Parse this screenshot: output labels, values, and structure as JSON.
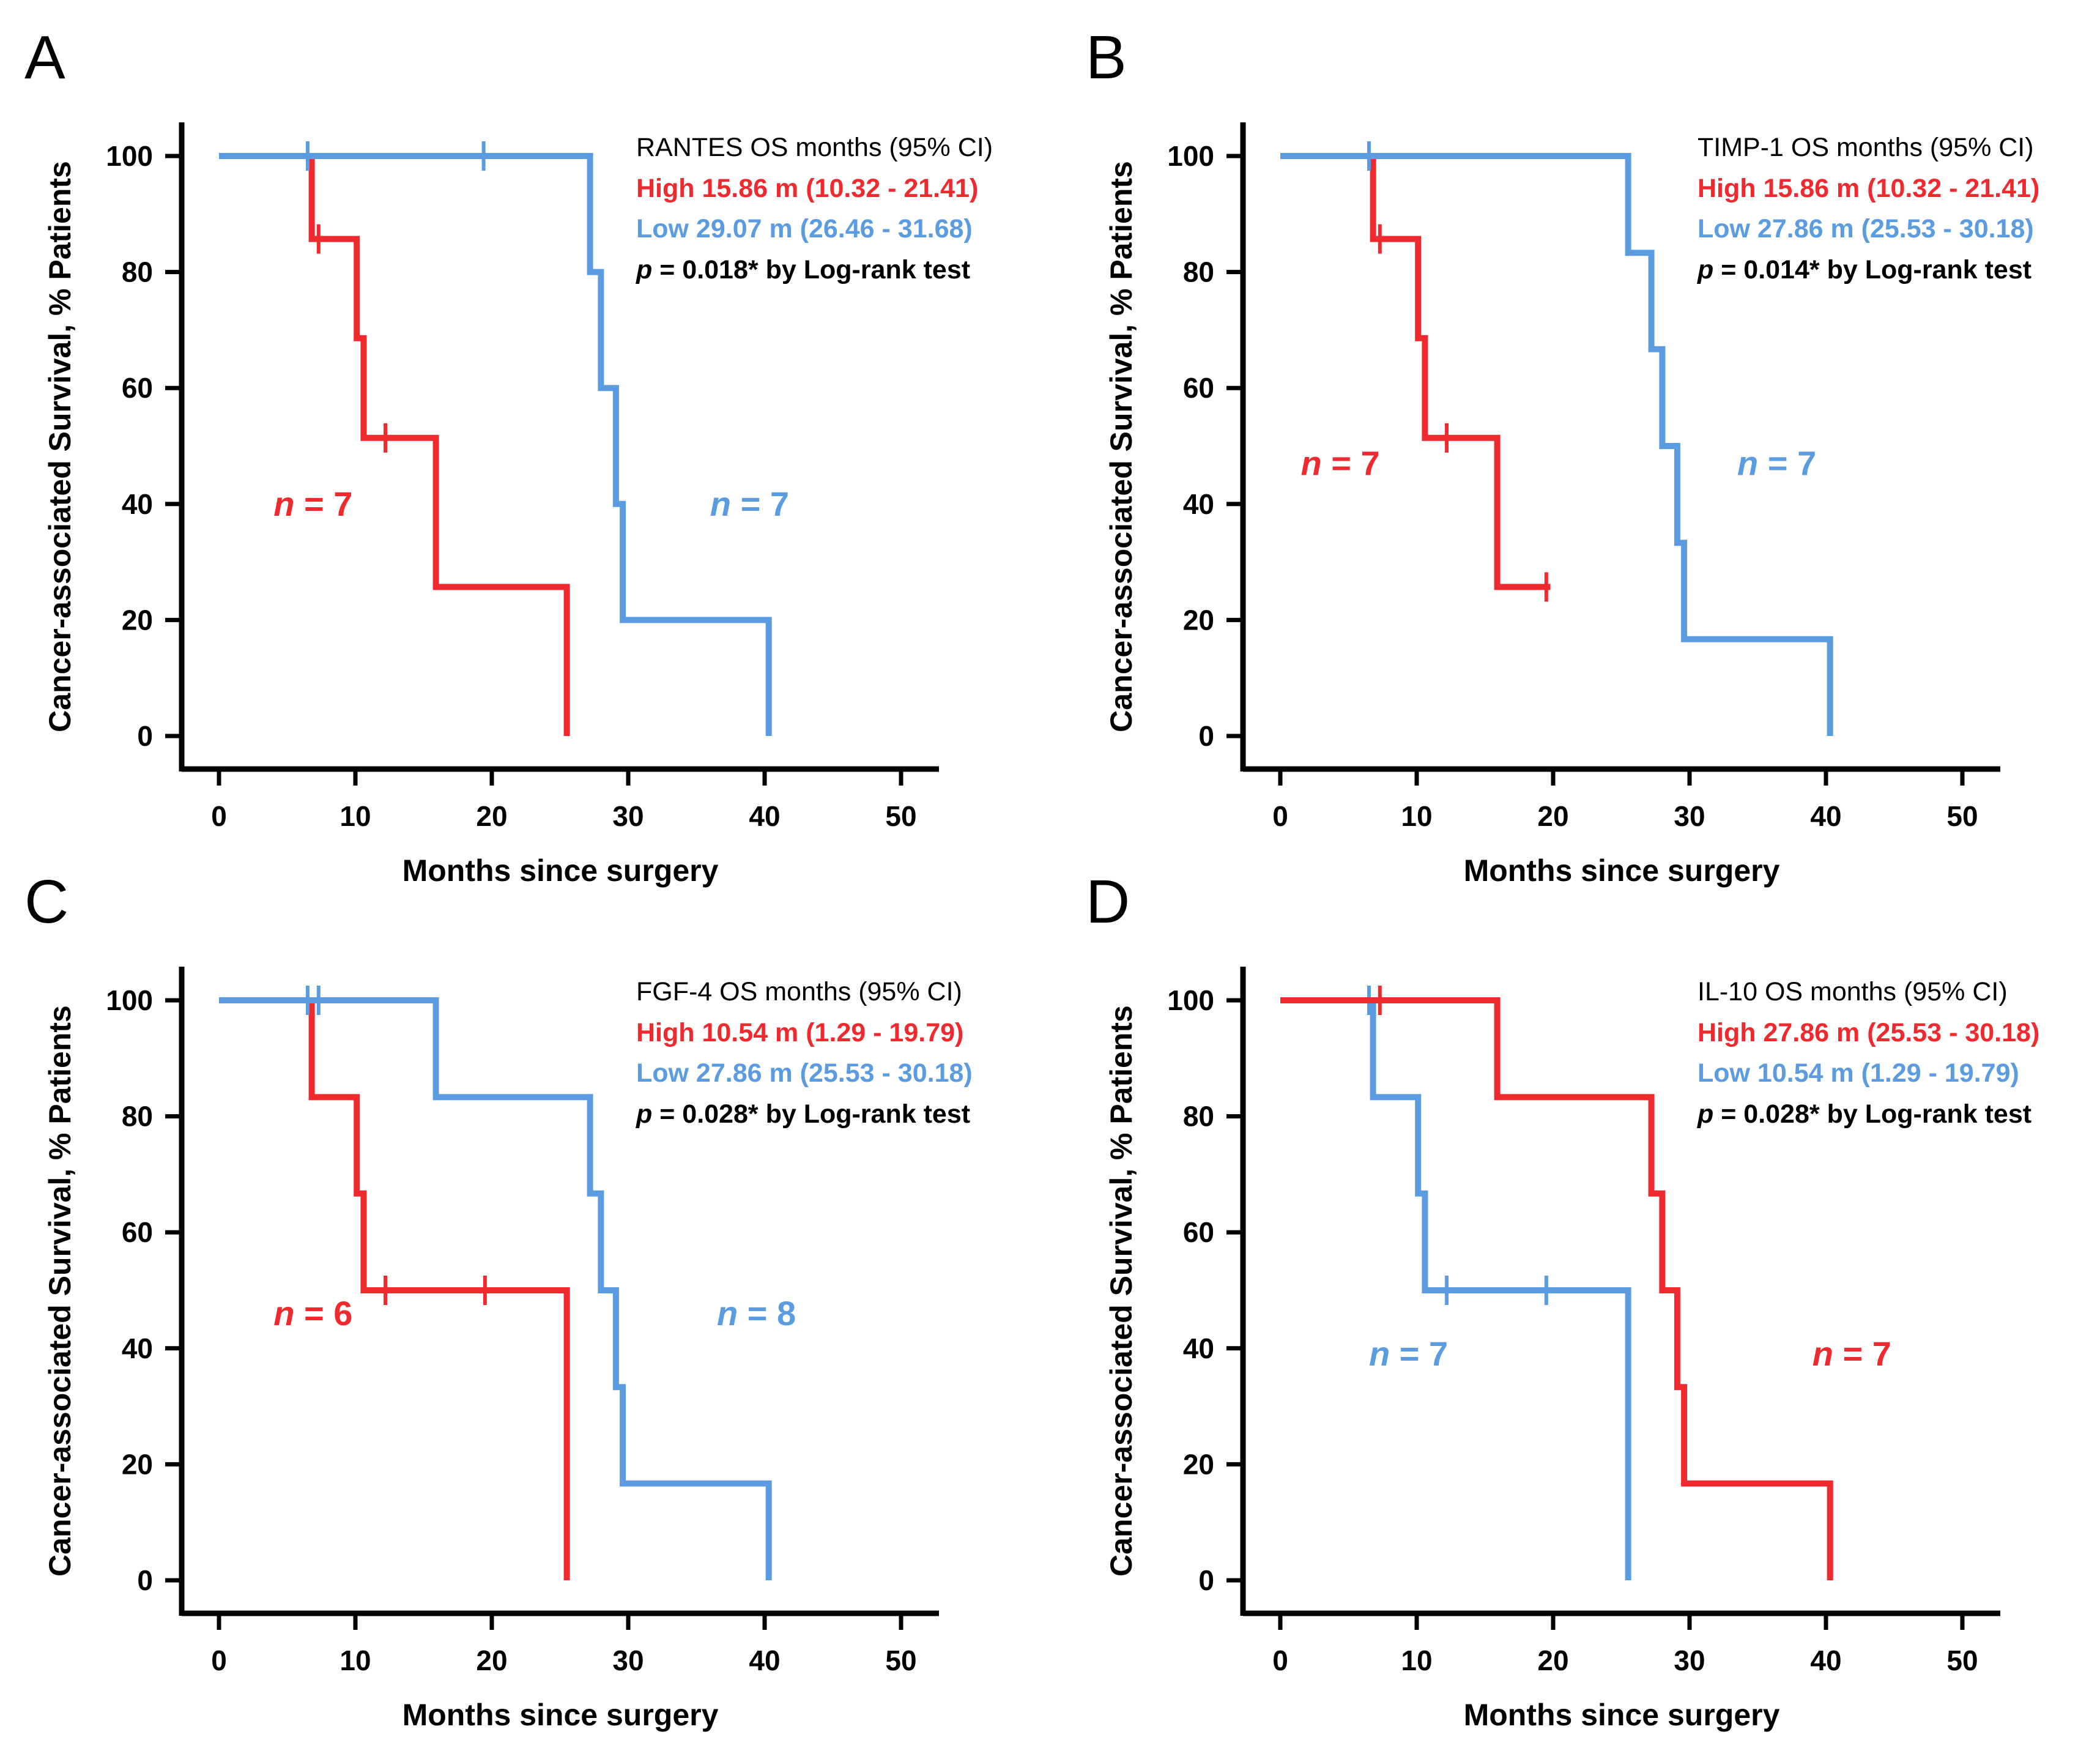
{
  "colors": {
    "high": "#ee2a2f",
    "low": "#5b9be0",
    "axis": "#000000"
  },
  "chart_data": [
    {
      "type": "step",
      "panel": "A",
      "xlabel": "Months since surgery",
      "ylabel": "Cancer-associated Survival, % Patients",
      "xlim": [
        0,
        50
      ],
      "ylim": [
        0,
        100
      ],
      "xticks": [
        "0",
        "10",
        "20",
        "30",
        "40",
        "50"
      ],
      "yticks": [
        "0",
        "20",
        "40",
        "60",
        "80",
        "100"
      ],
      "legend": {
        "heading": "RANTES   OS months (95% CI)",
        "high": "High  15.86 m (10.32 - 21.41)",
        "low": "Low  29.07 m (26.46 - 31.68)",
        "p_prefix": "p",
        "p_rest": " = 0.018* by Log-rank test"
      },
      "series": [
        {
          "name": "High",
          "color": "high",
          "n_label": "n = 7",
          "n_prefix": "n",
          "n_rest": " = 7",
          "n_at": [
            4,
            38
          ],
          "x": [
            0,
            6.8,
            6.8,
            10.1,
            10.1,
            10.6,
            10.6,
            15.9,
            15.9,
            25.5,
            25.5
          ],
          "y": [
            100,
            100,
            85.7,
            85.7,
            68.6,
            68.6,
            51.4,
            51.4,
            25.7,
            25.7,
            0
          ],
          "censored": [
            [
              7.3,
              85.7
            ],
            [
              12.2,
              51.4
            ]
          ]
        },
        {
          "name": "Low",
          "color": "low",
          "n_label": "n = 7",
          "n_prefix": "n",
          "n_rest": " = 7",
          "n_at": [
            36,
            38
          ],
          "x": [
            0,
            27.2,
            27.2,
            28.0,
            28.0,
            29.1,
            29.1,
            29.6,
            29.6,
            40.3,
            40.3
          ],
          "y": [
            100,
            100,
            80,
            80,
            60,
            60,
            40,
            40,
            20,
            20,
            0
          ],
          "censored": [
            [
              6.5,
              100
            ],
            [
              19.4,
              100
            ]
          ]
        }
      ]
    },
    {
      "type": "step",
      "panel": "B",
      "xlabel": "Months since surgery",
      "ylabel": "Cancer-associated Survival, % Patients",
      "xlim": [
        0,
        50
      ],
      "ylim": [
        0,
        100
      ],
      "xticks": [
        "0",
        "10",
        "20",
        "30",
        "40",
        "50"
      ],
      "yticks": [
        "0",
        "20",
        "40",
        "60",
        "80",
        "100"
      ],
      "legend": {
        "heading": "TIMP-1  OS months (95% CI)",
        "high": "High  15.86 m (10.32 - 21.41)",
        "low": "Low  27.86 m (25.53 - 30.18)",
        "p_prefix": "p",
        "p_rest": " = 0.014* by Log-rank test"
      },
      "series": [
        {
          "name": "High",
          "color": "high",
          "n_label": "n = 7",
          "n_prefix": "n",
          "n_rest": " = 7",
          "n_at": [
            1.5,
            45
          ],
          "x": [
            0,
            6.8,
            6.8,
            10.1,
            10.1,
            10.6,
            10.6,
            15.9,
            15.9,
            19.8
          ],
          "y": [
            100,
            100,
            85.7,
            85.7,
            68.6,
            68.6,
            51.4,
            51.4,
            25.7,
            25.7
          ],
          "censored": [
            [
              7.3,
              85.7
            ],
            [
              12.2,
              51.4
            ],
            [
              19.5,
              25.7
            ]
          ]
        },
        {
          "name": "Low",
          "color": "low",
          "n_label": "n = 7",
          "n_prefix": "n",
          "n_rest": " = 7",
          "n_at": [
            33.5,
            45
          ],
          "x": [
            0,
            25.5,
            25.5,
            27.2,
            27.2,
            28.0,
            28.0,
            29.1,
            29.1,
            29.6,
            29.6,
            40.3,
            40.3
          ],
          "y": [
            100,
            100,
            83.3,
            83.3,
            66.7,
            66.7,
            50,
            50,
            33.3,
            33.3,
            16.7,
            16.7,
            0
          ],
          "censored": [
            [
              6.5,
              100
            ]
          ]
        }
      ]
    },
    {
      "type": "step",
      "panel": "C",
      "xlabel": "Months since surgery",
      "ylabel": "Cancer-associated Survival, % Patients",
      "xlim": [
        0,
        50
      ],
      "ylim": [
        0,
        100
      ],
      "xticks": [
        "0",
        "10",
        "20",
        "30",
        "40",
        "50"
      ],
      "yticks": [
        "0",
        "20",
        "40",
        "60",
        "80",
        "100"
      ],
      "legend": {
        "heading": "FGF-4   OS months (95% CI)",
        "high": "High  10.54 m (1.29 - 19.79)",
        "low": "Low  27.86 m (25.53 - 30.18)",
        "p_prefix": "p",
        "p_rest": " = 0.028* by Log-rank test"
      },
      "series": [
        {
          "name": "High",
          "color": "high",
          "n_label": "n = 6",
          "n_prefix": "n",
          "n_rest": " = 6",
          "n_at": [
            4,
            44
          ],
          "x": [
            0,
            6.8,
            6.8,
            10.1,
            10.1,
            10.6,
            10.6,
            25.5,
            25.5
          ],
          "y": [
            100,
            100,
            83.3,
            83.3,
            66.7,
            66.7,
            50,
            50,
            0
          ],
          "censored": [
            [
              12.2,
              50
            ],
            [
              19.5,
              50
            ]
          ]
        },
        {
          "name": "Low",
          "color": "low",
          "n_label": "n = 8",
          "n_prefix": "n",
          "n_rest": " = 8",
          "n_at": [
            36.5,
            44
          ],
          "x": [
            0,
            15.9,
            15.9,
            27.2,
            27.2,
            28.0,
            28.0,
            29.1,
            29.1,
            29.6,
            29.6,
            40.3,
            40.3
          ],
          "y": [
            100,
            100,
            83.3,
            83.3,
            66.7,
            66.7,
            50,
            50,
            33.3,
            33.3,
            16.7,
            16.7,
            0
          ],
          "censored": [
            [
              6.5,
              100
            ],
            [
              7.3,
              100
            ]
          ]
        }
      ]
    },
    {
      "type": "step",
      "panel": "D",
      "xlabel": "Months since surgery",
      "ylabel": "Cancer-associated Survival, % Patients",
      "xlim": [
        0,
        50
      ],
      "ylim": [
        0,
        100
      ],
      "xticks": [
        "0",
        "10",
        "20",
        "30",
        "40",
        "50"
      ],
      "yticks": [
        "0",
        "20",
        "40",
        "60",
        "80",
        "100"
      ],
      "legend": {
        "heading": "IL-10   OS months (95% CI)",
        "high": "High  27.86 m (25.53 - 30.18)",
        "low": "Low  10.54 m (1.29 - 19.79)",
        "p_prefix": "p",
        "p_rest": " = 0.028* by Log-rank test"
      },
      "series": [
        {
          "name": "Low",
          "color": "low",
          "n_label": "n = 7",
          "n_prefix": "n",
          "n_rest": " = 7",
          "n_at": [
            6.5,
            37
          ],
          "x": [
            0,
            6.8,
            6.8,
            10.1,
            10.1,
            10.6,
            10.6,
            25.5,
            25.5
          ],
          "y": [
            100,
            100,
            83.3,
            83.3,
            66.7,
            66.7,
            50,
            50,
            0
          ],
          "censored": [
            [
              6.5,
              100
            ],
            [
              12.2,
              50
            ],
            [
              19.5,
              50
            ]
          ]
        },
        {
          "name": "High",
          "color": "high",
          "n_label": "n = 7",
          "n_prefix": "n",
          "n_rest": " = 7",
          "n_at": [
            39,
            37
          ],
          "x": [
            0,
            15.9,
            15.9,
            27.2,
            27.2,
            28.0,
            28.0,
            29.1,
            29.1,
            29.6,
            29.6,
            40.3,
            40.3
          ],
          "y": [
            100,
            100,
            83.3,
            83.3,
            66.7,
            66.7,
            50,
            50,
            33.3,
            33.3,
            16.7,
            16.7,
            0
          ],
          "censored": [
            [
              7.3,
              100
            ]
          ]
        }
      ]
    }
  ]
}
